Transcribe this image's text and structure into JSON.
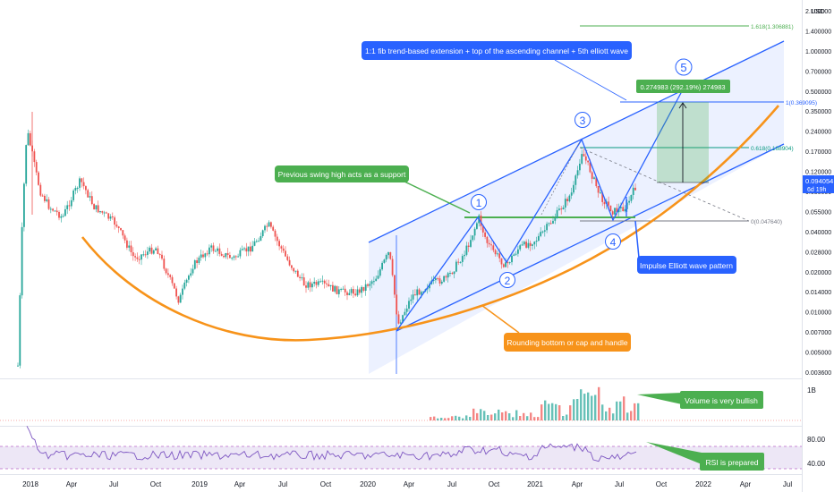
{
  "chart_data": {
    "type": "candlestick",
    "y_scale": "log",
    "currency": "USD",
    "x_ticks": [
      "2018",
      "Apr",
      "Jul",
      "Oct",
      "2019",
      "Apr",
      "Jul",
      "Oct",
      "2020",
      "Apr",
      "Jul",
      "Oct",
      "2021",
      "Apr",
      "Jul",
      "Oct",
      "2022",
      "Apr",
      "Jul"
    ],
    "y_ticks": [
      "2.100000",
      "1.400000",
      "1.000000",
      "0.700000",
      "0.500000",
      "0.350000",
      "0.240000",
      "0.170000",
      "0.120000",
      "0.080000",
      "0.055000",
      "0.040000",
      "0.028000",
      "0.020000",
      "0.014000",
      "0.010000",
      "0.007000",
      "0.005000",
      "0.003600"
    ],
    "last_price": "0.094054",
    "countdown": "6d 19h",
    "fib_levels": [
      {
        "label": "1.618(1.306881)",
        "value": 1.306881,
        "color": "#4caf50"
      },
      {
        "label": "1(0.369095)",
        "value": 0.369095,
        "color": "#2962ff"
      },
      {
        "label": "0.618(0.168904)",
        "value": 0.168904,
        "color": "#089981"
      },
      {
        "label": "0(0.047640)",
        "value": 0.04764,
        "color": "#787b86"
      }
    ],
    "measure_label": "0.274983 (292.19%) 274983",
    "wave_labels": [
      "1",
      "2",
      "3",
      "4",
      "5"
    ],
    "annotations": {
      "fib_note": "1:1 fib trend-based extension + top of the ascending channel + 5th elliott wave",
      "swing_note": "Previous swing high acts as a support",
      "impulse_note": "Impulse Elliott wave pattern",
      "rounding_note": "Rounding bottom or cap and handle",
      "volume_note": "Volume is very bullish",
      "rsi_note": "RSI is prepared"
    },
    "volume_axis_label": "1B",
    "rsi_levels": [
      "80.00",
      "40.00"
    ],
    "colors": {
      "up": "#26a69a",
      "down": "#ef5350",
      "channel": "#2962ff",
      "curve": "#f7931a",
      "rsi": "#7e57c2"
    }
  }
}
